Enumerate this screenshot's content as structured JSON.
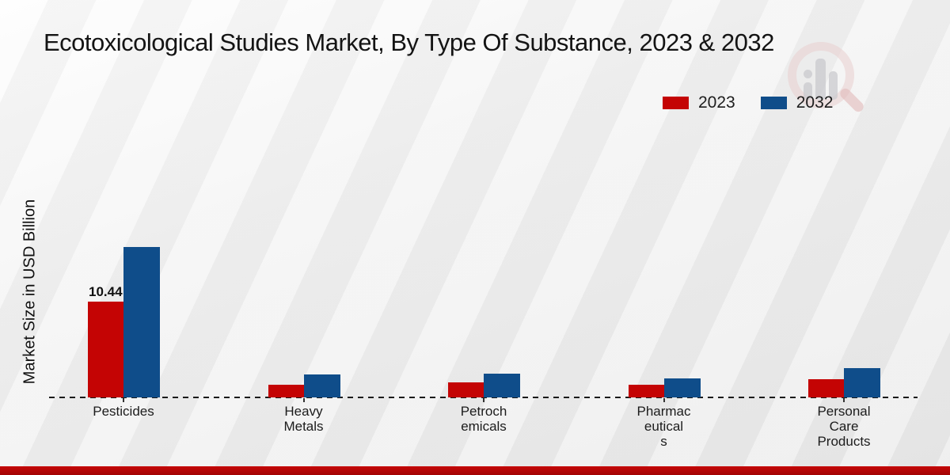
{
  "title": "Ecotoxicological Studies Market, By Type Of Substance, 2023 & 2032",
  "watermark_icon": "magnifier-bar-chart-logo",
  "footer_band_color": "#b00606",
  "chart_data": {
    "type": "bar",
    "title": "Ecotoxicological Studies Market, By Type Of Substance, 2023 & 2032",
    "xlabel": "",
    "ylabel": "Market Size in USD Billion",
    "categories": [
      "Pesticides",
      "Heavy Metals",
      "Petrochemicals",
      "Pharmaceuticals",
      "Personal Care Products"
    ],
    "tick_labels": [
      "Pesticides",
      "Heavy\nMetals",
      "Petroch\nemicals",
      "Pharmac\neutical\ns",
      "Personal\nCare\nProducts"
    ],
    "series": [
      {
        "name": "2023",
        "color": "#c40404",
        "values": [
          10.44,
          1.4,
          1.65,
          1.4,
          2.0
        ],
        "data_labels": [
          "10.44",
          "",
          "",
          "",
          ""
        ]
      },
      {
        "name": "2032",
        "color": "#0f4d8a",
        "values": [
          16.4,
          2.5,
          2.6,
          2.1,
          3.15
        ],
        "data_labels": [
          "",
          "",
          "",
          "",
          ""
        ]
      }
    ],
    "ylim": [
      0,
      30
    ],
    "grid": false,
    "legend_position": "top-right",
    "baseline_style": "dashed"
  }
}
